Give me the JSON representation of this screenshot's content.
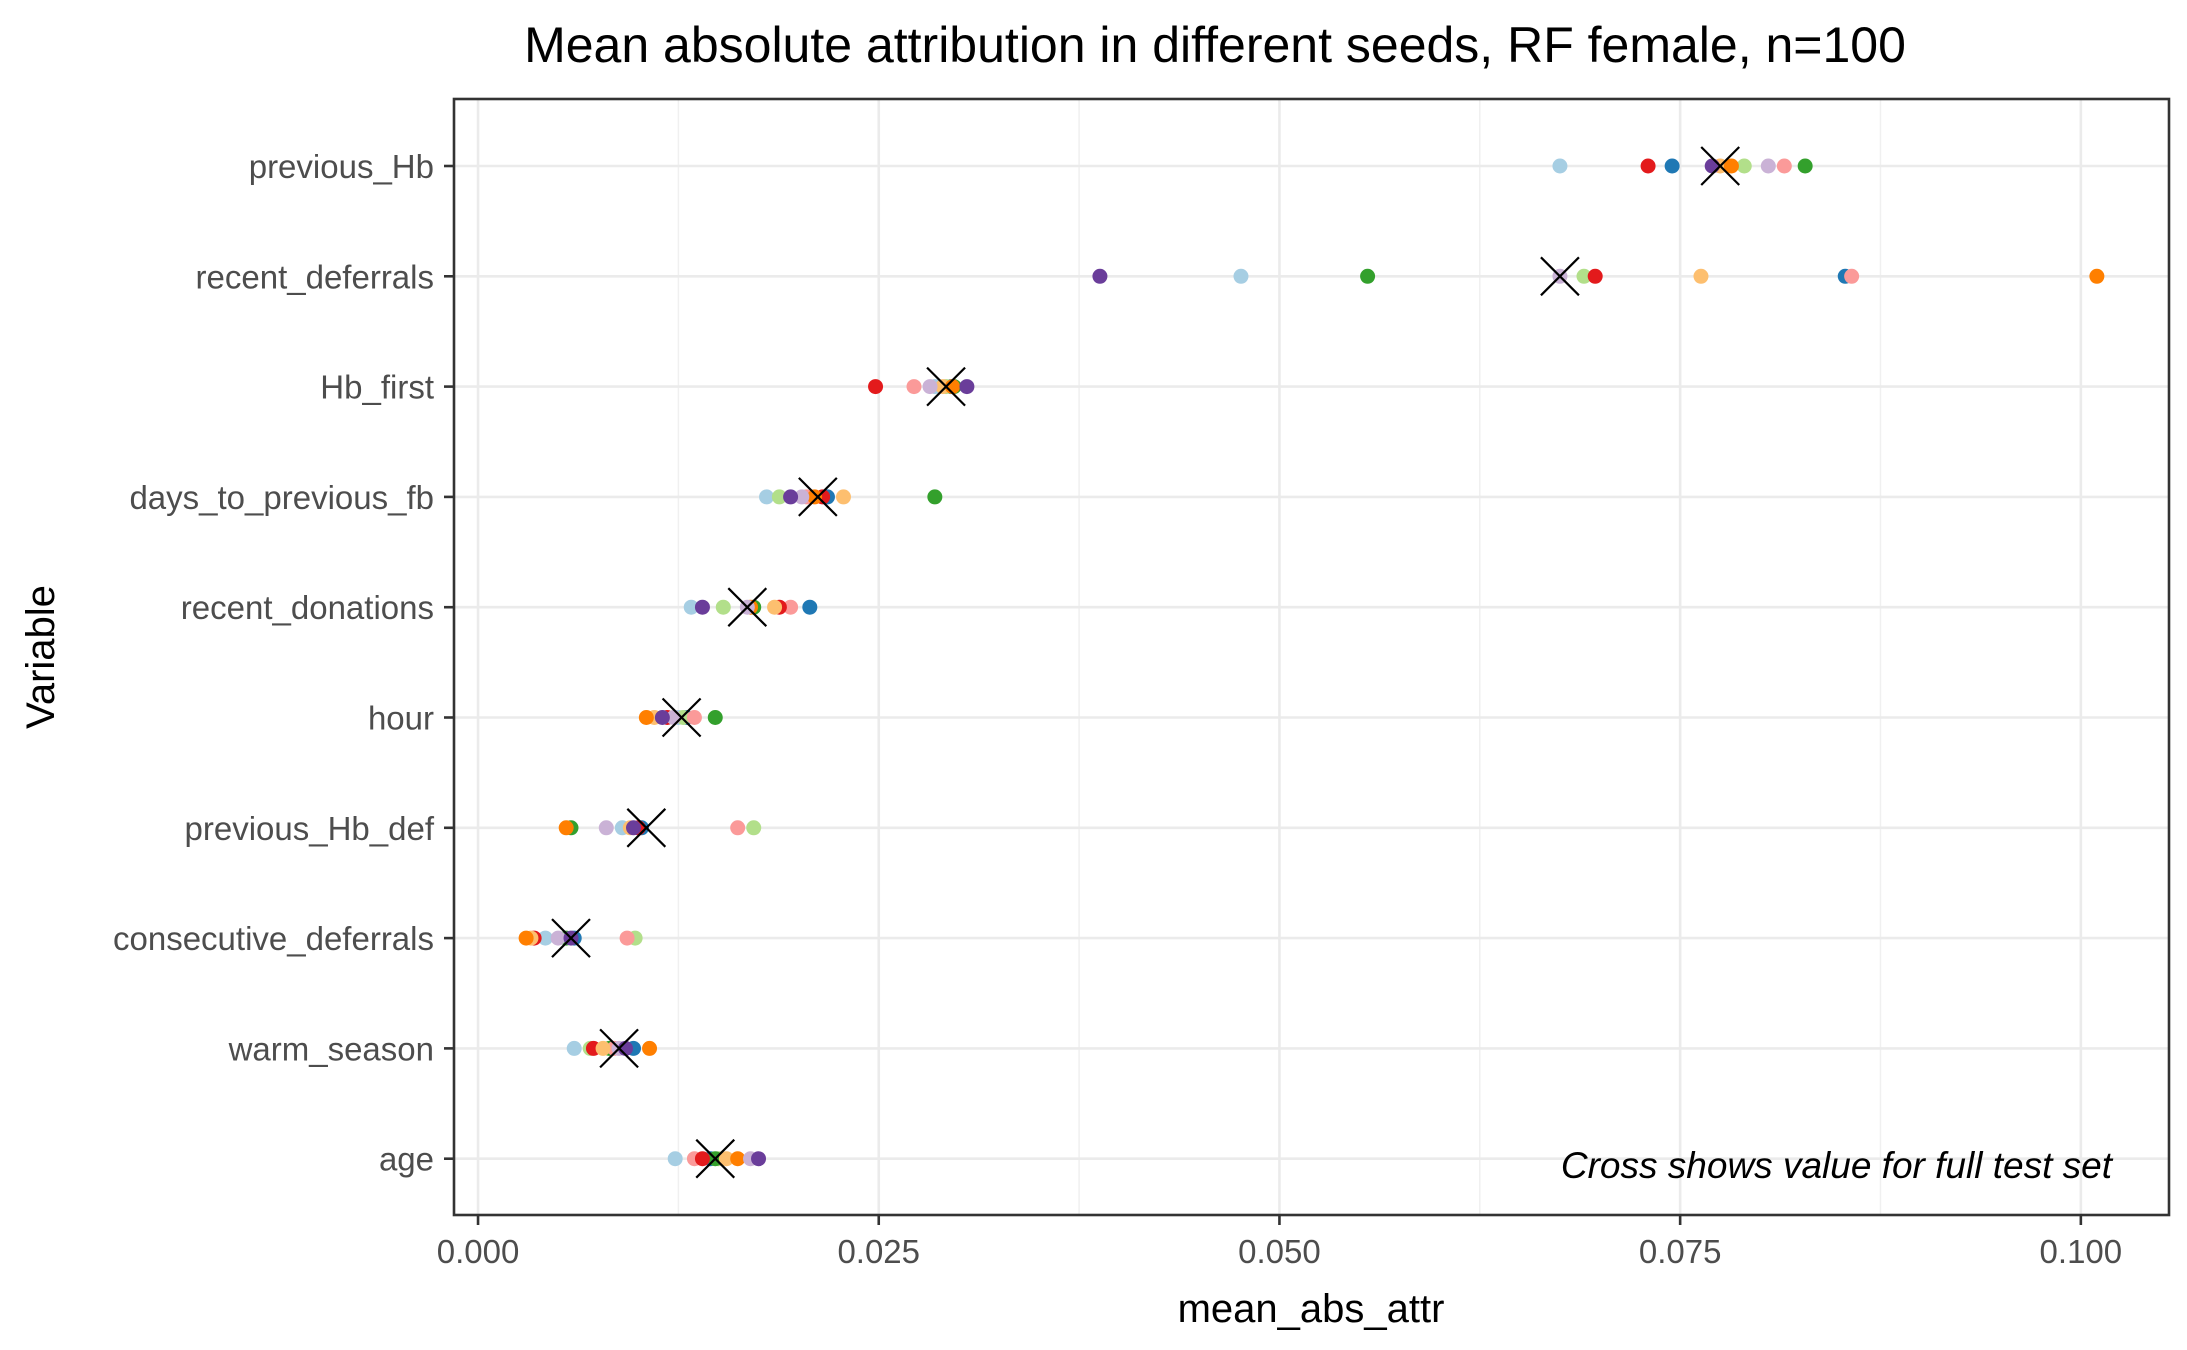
{
  "chart_data": {
    "type": "scatter",
    "title": "Mean absolute attribution in different seeds, RF female, n=100",
    "xlabel": "mean_abs_attr",
    "ylabel": "Variable",
    "xlim": [
      -0.0015,
      0.1055
    ],
    "x_ticks": [
      "0.000",
      "0.025",
      "0.050",
      "0.075",
      "0.100"
    ],
    "x_tick_values": [
      0,
      0.025,
      0.05,
      0.075,
      0.1
    ],
    "grid": true,
    "legend": "none",
    "annotation": "Cross shows value for full test set",
    "seed_colors": [
      "#a6cee3",
      "#1f78b4",
      "#b2df8a",
      "#33a02c",
      "#fb9a99",
      "#e31a1c",
      "#fdbf6f",
      "#ff7f00",
      "#cab2d6",
      "#6a3d9a"
    ],
    "categories": [
      "previous_Hb",
      "recent_deferrals",
      "Hb_first",
      "days_to_previous_fb",
      "recent_donations",
      "hour",
      "previous_Hb_def",
      "consecutive_deferrals",
      "warm_season",
      "age"
    ],
    "series": [
      {
        "variable": "previous_Hb",
        "seed_values": [
          0.0675,
          0.0745,
          0.079,
          0.0828,
          0.0815,
          0.073,
          0.0775,
          0.0782,
          0.0805,
          0.077
        ],
        "full_test_set": 0.0775
      },
      {
        "variable": "recent_deferrals",
        "seed_values": [
          0.0476,
          0.0853,
          0.069,
          0.0555,
          0.0857,
          0.0697,
          0.0763,
          0.101,
          0.0675,
          0.0388
        ],
        "full_test_set": 0.0675
      },
      {
        "variable": "Hb_first",
        "seed_values": [
          0.0285,
          0.0295,
          0.0292,
          0.0297,
          0.0272,
          0.0248,
          0.029,
          0.0296,
          0.0282,
          0.0305
        ],
        "full_test_set": 0.0292
      },
      {
        "variable": "days_to_previous_fb",
        "seed_values": [
          0.018,
          0.0218,
          0.0188,
          0.0285,
          0.0205,
          0.0215,
          0.0228,
          0.021,
          0.0202,
          0.0195
        ],
        "full_test_set": 0.0212
      },
      {
        "variable": "recent_donations",
        "seed_values": [
          0.0133,
          0.0207,
          0.0153,
          0.0172,
          0.0195,
          0.0188,
          0.0185,
          0.017,
          0.0168,
          0.014
        ],
        "full_test_set": 0.0168
      },
      {
        "variable": "hour",
        "seed_values": [
          0.0125,
          0.013,
          0.0128,
          0.0148,
          0.0135,
          0.0118,
          0.011,
          0.0105,
          0.0122,
          0.0115
        ],
        "full_test_set": 0.0127
      },
      {
        "variable": "previous_Hb_def",
        "seed_values": [
          0.009,
          0.0102,
          0.0172,
          0.0058,
          0.0162,
          0.01,
          0.0095,
          0.0055,
          0.008,
          0.0097
        ],
        "full_test_set": 0.0105
      },
      {
        "variable": "consecutive_deferrals",
        "seed_values": [
          0.0042,
          0.006,
          0.0098,
          0.0055,
          0.0093,
          0.0035,
          0.0033,
          0.003,
          0.005,
          0.0058
        ],
        "full_test_set": 0.0058
      },
      {
        "variable": "warm_season",
        "seed_values": [
          0.006,
          0.0097,
          0.007,
          0.0082,
          0.0085,
          0.0072,
          0.0078,
          0.0107,
          0.0088,
          0.0092
        ],
        "full_test_set": 0.0088
      },
      {
        "variable": "age",
        "seed_values": [
          0.0123,
          0.0145,
          0.015,
          0.0148,
          0.0135,
          0.014,
          0.0155,
          0.0162,
          0.017,
          0.0175
        ],
        "full_test_set": 0.0148
      }
    ]
  }
}
